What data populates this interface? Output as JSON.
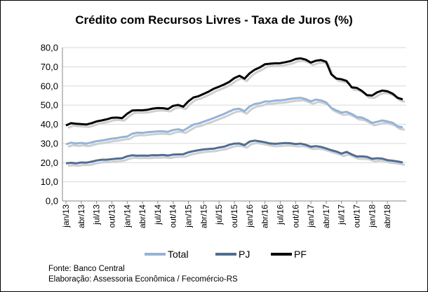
{
  "chart_data": {
    "type": "line",
    "title": "Crédito com Recursos Livres - Taxa de Juros (%)",
    "xlabel": "",
    "ylabel": "",
    "ylim": [
      0,
      80
    ],
    "yticks": [
      "0,0",
      "10,0",
      "20,0",
      "30,0",
      "40,0",
      "50,0",
      "60,0",
      "70,0",
      "80,0"
    ],
    "grid": true,
    "legend_position": "bottom",
    "x_tick_labels": [
      "jan/13",
      "abr/13",
      "jul/13",
      "out/13",
      "jan/14",
      "abr/14",
      "jul/14",
      "out/14",
      "jan/15",
      "abr/15",
      "jul/15",
      "out/15",
      "jan/16",
      "abr/16",
      "jul/16",
      "out/16",
      "jan/17",
      "abr/17",
      "jul/17",
      "out/17",
      "jan/18",
      "abr/18"
    ],
    "x": [
      "jan/13",
      "fev/13",
      "mar/13",
      "abr/13",
      "mai/13",
      "jun/13",
      "jul/13",
      "ago/13",
      "set/13",
      "out/13",
      "nov/13",
      "dez/13",
      "jan/14",
      "fev/14",
      "mar/14",
      "abr/14",
      "mai/14",
      "jun/14",
      "jul/14",
      "ago/14",
      "set/14",
      "out/14",
      "nov/14",
      "dez/14",
      "jan/15",
      "fev/15",
      "mar/15",
      "abr/15",
      "mai/15",
      "jun/15",
      "jul/15",
      "ago/15",
      "set/15",
      "out/15",
      "nov/15",
      "dez/15",
      "jan/16",
      "fev/16",
      "mar/16",
      "abr/16",
      "mai/16",
      "jun/16",
      "jul/16",
      "ago/16",
      "set/16",
      "out/16",
      "nov/16",
      "dez/16",
      "jan/17",
      "fev/17",
      "mar/17",
      "abr/17",
      "mai/17",
      "jun/17",
      "jul/17",
      "ago/17",
      "set/17",
      "out/17",
      "nov/17",
      "dez/17",
      "jan/18",
      "fev/18",
      "mar/18",
      "abr/18",
      "mai/18",
      "jun/18",
      "jul/18"
    ],
    "series": [
      {
        "name": "Total",
        "color": "#95b3d7",
        "values": [
          29.6,
          30.4,
          30.0,
          30.3,
          29.9,
          30.5,
          31.2,
          31.5,
          32.0,
          32.5,
          32.8,
          33.3,
          33.6,
          35.1,
          35.6,
          35.5,
          35.9,
          36.1,
          36.3,
          36.3,
          36.1,
          37.0,
          37.4,
          36.7,
          38.3,
          39.9,
          40.4,
          41.4,
          42.3,
          43.3,
          44.4,
          45.4,
          46.7,
          47.8,
          48.1,
          46.8,
          49.3,
          50.6,
          51.0,
          51.9,
          51.9,
          52.4,
          52.5,
          52.8,
          53.3,
          53.6,
          53.8,
          53.1,
          52.0,
          52.9,
          52.5,
          51.4,
          48.5,
          47.2,
          46.1,
          46.5,
          45.4,
          43.8,
          43.5,
          42.3,
          40.7,
          41.3,
          42.0,
          41.5,
          40.8,
          38.9,
          38.4
        ]
      },
      {
        "name": "PJ",
        "color": "#4f6d92",
        "values": [
          19.6,
          19.9,
          19.6,
          20.1,
          20.0,
          20.5,
          21.1,
          21.5,
          21.5,
          21.8,
          22.1,
          22.3,
          23.3,
          23.8,
          23.6,
          23.7,
          23.6,
          23.9,
          23.8,
          24.0,
          23.7,
          24.2,
          24.3,
          24.4,
          25.4,
          26.0,
          26.5,
          26.9,
          27.1,
          27.3,
          27.9,
          28.3,
          29.3,
          29.9,
          30.0,
          29.1,
          31.0,
          31.5,
          31.1,
          30.6,
          30.0,
          29.8,
          30.0,
          30.2,
          30.1,
          29.7,
          29.9,
          29.3,
          28.3,
          28.6,
          28.2,
          27.4,
          26.5,
          25.8,
          24.7,
          25.6,
          24.3,
          23.2,
          23.3,
          23.0,
          22.0,
          22.3,
          22.1,
          21.3,
          21.0,
          20.6,
          20.1
        ]
      },
      {
        "name": "PF",
        "color": "#000000",
        "values": [
          39.4,
          40.6,
          40.3,
          40.1,
          39.9,
          40.6,
          41.5,
          42.0,
          42.6,
          43.4,
          43.5,
          43.2,
          45.5,
          47.2,
          47.3,
          47.3,
          47.6,
          48.2,
          48.5,
          48.4,
          48.0,
          49.6,
          50.1,
          49.2,
          52.0,
          54.0,
          54.7,
          55.9,
          57.1,
          58.6,
          59.6,
          60.8,
          62.1,
          64.1,
          65.3,
          63.8,
          66.6,
          68.5,
          69.7,
          71.3,
          71.6,
          71.8,
          71.9,
          72.4,
          73.0,
          74.1,
          74.4,
          73.7,
          72.2,
          73.2,
          73.5,
          72.6,
          66.1,
          63.9,
          63.5,
          62.6,
          59.3,
          59.0,
          57.4,
          55.2,
          55.0,
          56.7,
          57.6,
          57.2,
          56.0,
          53.8,
          53.0
        ]
      }
    ]
  },
  "source_line": "Fonte: Banco Central",
  "elaboration_line": "Elaboração: Assessoria Econômica / Fecomércio-RS"
}
